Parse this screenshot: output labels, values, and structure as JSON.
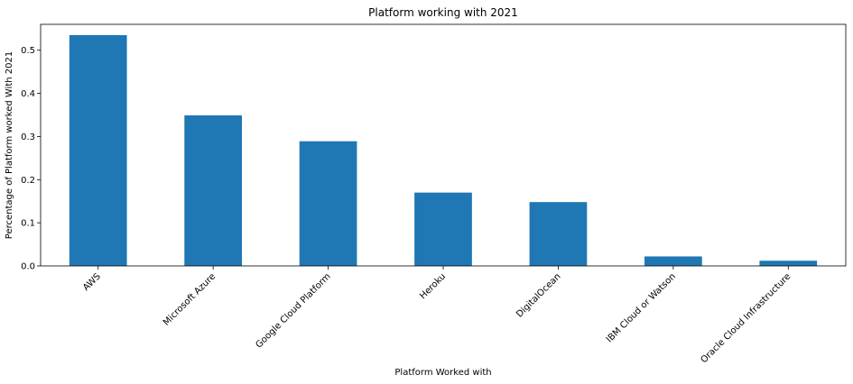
{
  "chart_data": {
    "type": "bar",
    "title": "Platform working with 2021",
    "xlabel": "Platform Worked with",
    "ylabel": "Percentage of Platform worked With 2021",
    "categories": [
      "AWS",
      "Microsoft Azure",
      "Google Cloud Platform",
      "Heroku",
      "DigitalOcean",
      "IBM Cloud or Watson",
      "Oracle Cloud Infrastructure"
    ],
    "values": [
      0.535,
      0.349,
      0.289,
      0.17,
      0.148,
      0.022,
      0.012
    ],
    "ylim": [
      0,
      0.56
    ],
    "yticks": [
      0.0,
      0.1,
      0.2,
      0.3,
      0.4,
      0.5
    ],
    "ytick_labels": [
      "0.0",
      "0.1",
      "0.2",
      "0.3",
      "0.4",
      "0.5"
    ],
    "color": "#1f77b4",
    "grid": false,
    "legend": "none"
  }
}
